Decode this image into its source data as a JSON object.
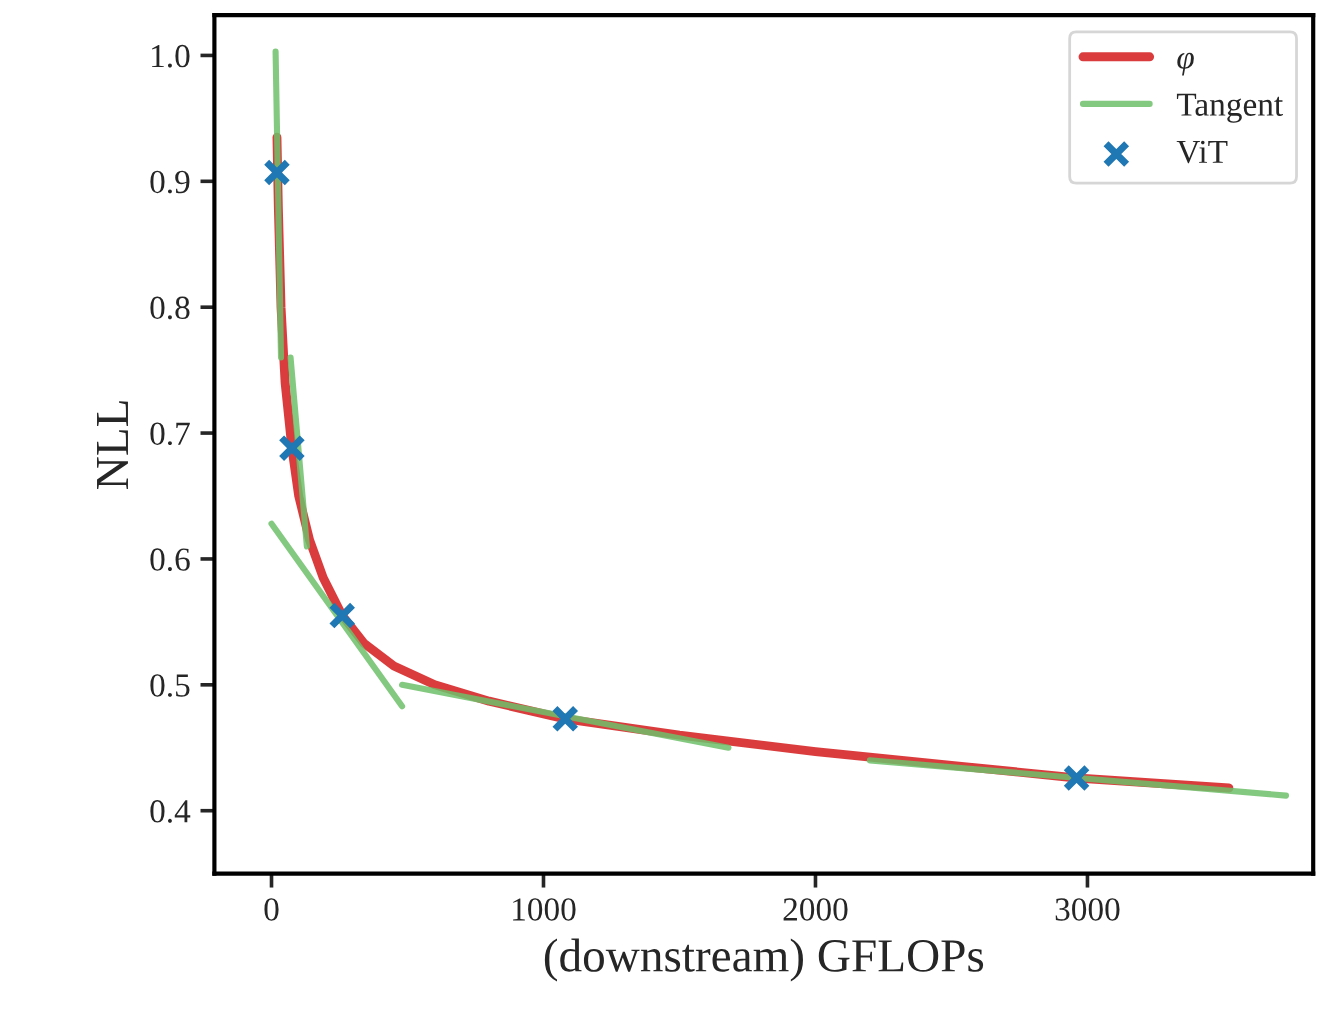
{
  "chart_data": {
    "type": "line",
    "xlabel": "(downstream) GFLOPs",
    "ylabel": "NLL",
    "xlim": [
      -210,
      3830
    ],
    "ylim": [
      0.35,
      1.032
    ],
    "xticks": [
      0,
      1000,
      2000,
      3000
    ],
    "yticks": [
      0.4,
      0.5,
      0.6,
      0.7,
      0.8,
      0.9,
      {
        "value": 1.0,
        "label": "1.0"
      }
    ],
    "grid": false,
    "legend": "top right",
    "series": [
      {
        "name": "φ",
        "color": "#d62728",
        "x": [
          20,
          25,
          35,
          50,
          75,
          100,
          140,
          190,
          260,
          340,
          450,
          600,
          800,
          1080,
          1500,
          2000,
          2500,
          2960,
          3520
        ],
        "values": [
          0.935,
          0.88,
          0.8,
          0.74,
          0.688,
          0.65,
          0.615,
          0.585,
          0.555,
          0.533,
          0.515,
          0.5,
          0.487,
          0.473,
          0.46,
          0.447,
          0.436,
          0.426,
          0.418
        ]
      },
      {
        "name": "Tangent",
        "color": "#6dbf6a",
        "x": [
          15,
          35,
          null,
          70,
          130,
          null,
          0,
          480,
          null,
          480,
          1680,
          null,
          2200,
          3730
        ],
        "values": [
          1.003,
          0.76,
          null,
          0.76,
          0.61,
          null,
          0.628,
          0.483,
          null,
          0.5,
          0.45,
          null,
          0.44,
          0.412
        ]
      },
      {
        "name": "ViT",
        "type": "scatter",
        "marker": "cross",
        "color": "#1f77b4",
        "x": [
          20,
          75,
          260,
          1080,
          2960
        ],
        "values": [
          0.907,
          0.688,
          0.555,
          0.473,
          0.426
        ]
      }
    ]
  }
}
